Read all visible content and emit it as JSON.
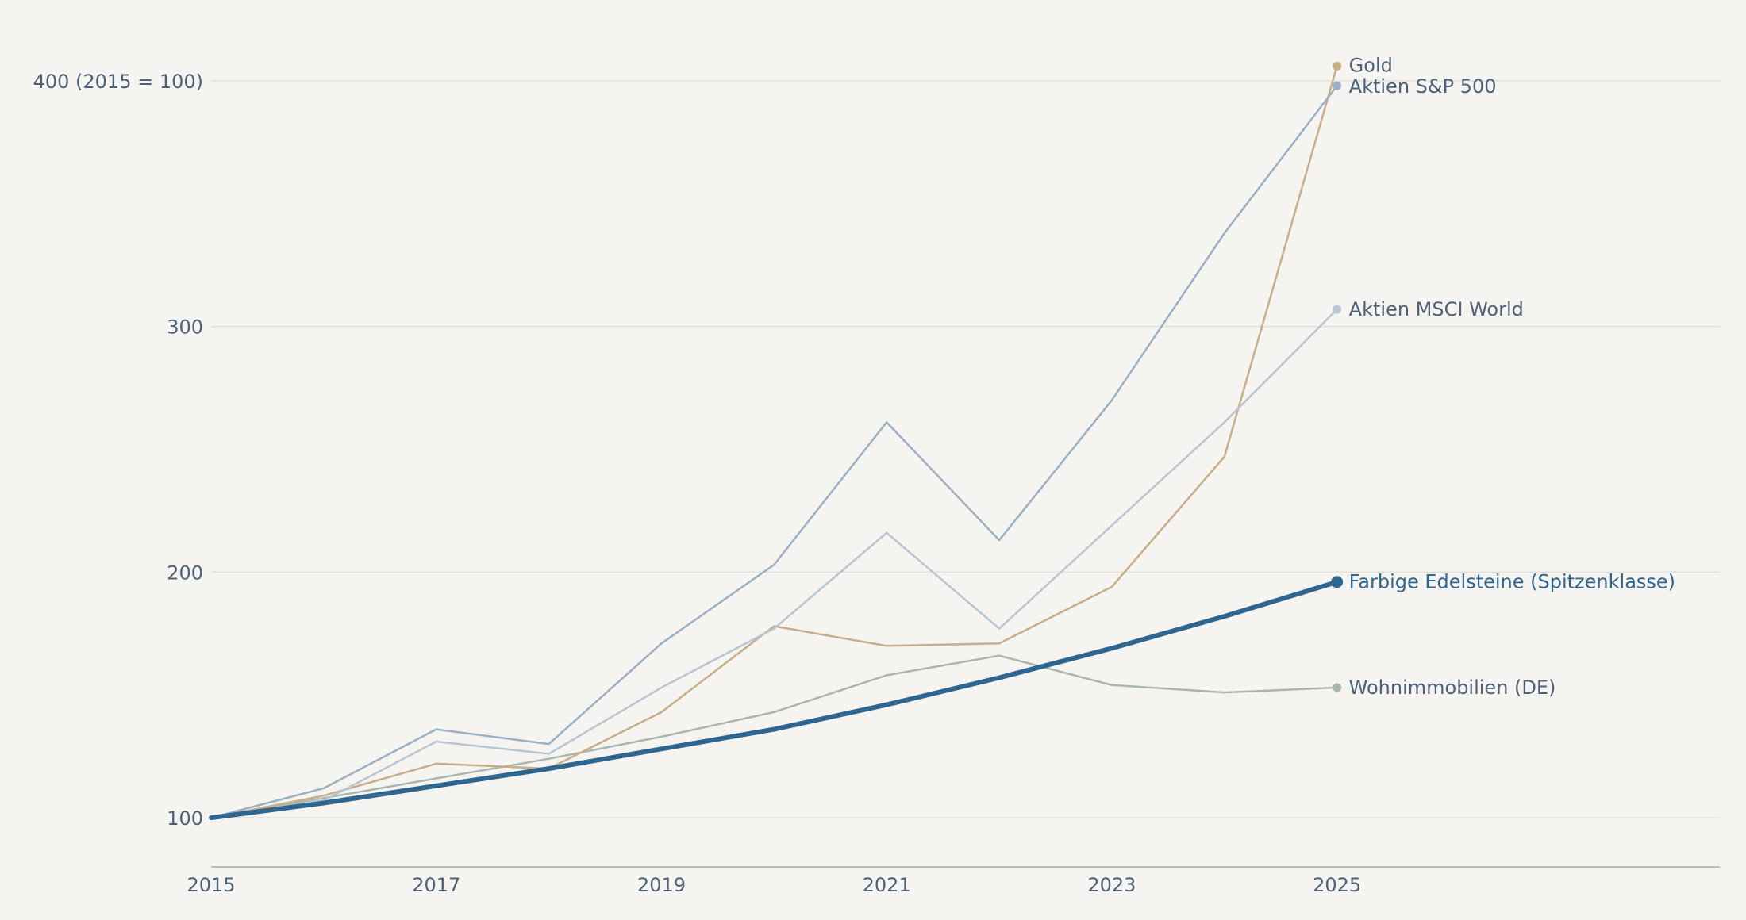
{
  "chart_data": {
    "type": "line",
    "title": "",
    "xlabel": "",
    "ylabel": "",
    "y_unit_note": "(2015 = 100)",
    "x": [
      2015,
      2016,
      2017,
      2018,
      2019,
      2020,
      2021,
      2022,
      2023,
      2024,
      2025
    ],
    "x_ticks": [
      2015,
      2017,
      2019,
      2021,
      2023,
      2025
    ],
    "xlim": [
      2015,
      2028.4
    ],
    "y_ticks": [
      100,
      200,
      300,
      400
    ],
    "ylim": [
      80,
      420
    ],
    "grid": true,
    "legend": "inline labels at line ends",
    "series": [
      {
        "name": "Wohnimmobilien (DE)",
        "color": "#a9b6ad",
        "width": 2.5,
        "values": [
          100,
          108,
          116,
          124,
          133,
          143,
          158,
          166,
          154,
          151,
          153
        ]
      },
      {
        "name": "Gold",
        "color": "#c8ad88",
        "width": 2.5,
        "values": [
          100,
          109,
          122,
          120,
          143,
          178,
          170,
          171,
          194,
          247,
          406
        ]
      },
      {
        "name": "Aktien MSCI World",
        "color": "#b7c6d2",
        "width": 2.5,
        "values": [
          100,
          107,
          131,
          126,
          153,
          177,
          216,
          177,
          219,
          261,
          307
        ]
      },
      {
        "name": "Aktien S&P 500",
        "color": "#9ab0c4",
        "width": 2.5,
        "values": [
          100,
          112,
          136,
          130,
          171,
          203,
          261,
          213,
          270,
          338,
          398
        ]
      },
      {
        "name": "Farbige Edelsteine (Spitzenklasse)",
        "color": "#2e6690",
        "width": 6,
        "highlight": true,
        "values": [
          100,
          106,
          113,
          120,
          128,
          136,
          146,
          157,
          169,
          182,
          196
        ]
      }
    ]
  }
}
